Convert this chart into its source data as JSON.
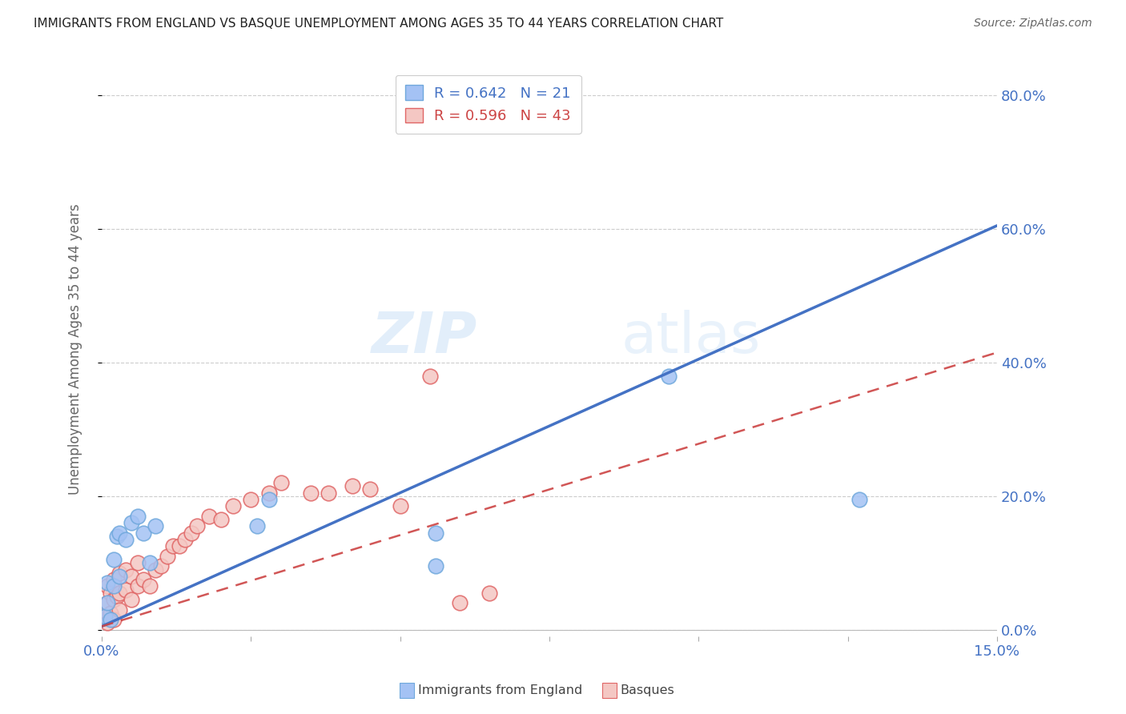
{
  "title": "IMMIGRANTS FROM ENGLAND VS BASQUE UNEMPLOYMENT AMONG AGES 35 TO 44 YEARS CORRELATION CHART",
  "source": "Source: ZipAtlas.com",
  "ylabel": "Unemployment Among Ages 35 to 44 years",
  "ytick_labels": [
    "0.0%",
    "20.0%",
    "40.0%",
    "60.0%",
    "80.0%"
  ],
  "ytick_values": [
    0.0,
    0.2,
    0.4,
    0.6,
    0.8
  ],
  "xrange": [
    0.0,
    0.15
  ],
  "yrange": [
    -0.01,
    0.85
  ],
  "legend_england_R": 0.642,
  "legend_england_N": 21,
  "legend_basque_R": 0.596,
  "legend_basque_N": 43,
  "watermark_zip": "ZIP",
  "watermark_atlas": "atlas",
  "england_scatter_x": [
    0.0005,
    0.001,
    0.001,
    0.0015,
    0.002,
    0.002,
    0.0025,
    0.003,
    0.003,
    0.004,
    0.005,
    0.006,
    0.007,
    0.008,
    0.009,
    0.026,
    0.028,
    0.056,
    0.056,
    0.095,
    0.127
  ],
  "england_scatter_y": [
    0.02,
    0.04,
    0.07,
    0.015,
    0.065,
    0.105,
    0.14,
    0.08,
    0.145,
    0.135,
    0.16,
    0.17,
    0.145,
    0.1,
    0.155,
    0.155,
    0.195,
    0.145,
    0.095,
    0.38,
    0.195
  ],
  "england_line_x": [
    0.0,
    0.15
  ],
  "england_line_y": [
    0.005,
    0.605
  ],
  "basque_scatter_x": [
    0.0005,
    0.001,
    0.001,
    0.001,
    0.0015,
    0.0015,
    0.002,
    0.002,
    0.002,
    0.0025,
    0.003,
    0.003,
    0.003,
    0.004,
    0.004,
    0.005,
    0.005,
    0.006,
    0.006,
    0.007,
    0.008,
    0.009,
    0.01,
    0.011,
    0.012,
    0.013,
    0.014,
    0.015,
    0.016,
    0.018,
    0.02,
    0.022,
    0.025,
    0.028,
    0.03,
    0.035,
    0.038,
    0.042,
    0.045,
    0.05,
    0.055,
    0.06,
    0.065
  ],
  "basque_scatter_y": [
    0.02,
    0.01,
    0.04,
    0.065,
    0.025,
    0.055,
    0.015,
    0.045,
    0.075,
    0.05,
    0.03,
    0.055,
    0.085,
    0.06,
    0.09,
    0.045,
    0.08,
    0.065,
    0.1,
    0.075,
    0.065,
    0.09,
    0.095,
    0.11,
    0.125,
    0.125,
    0.135,
    0.145,
    0.155,
    0.17,
    0.165,
    0.185,
    0.195,
    0.205,
    0.22,
    0.205,
    0.205,
    0.215,
    0.21,
    0.185,
    0.38,
    0.04,
    0.055
  ],
  "basque_line_x": [
    0.0,
    0.15
  ],
  "basque_line_y": [
    0.005,
    0.415
  ],
  "england_color": "#a4c2f4",
  "basque_color": "#f4c7c3",
  "england_scatter_edge": "#6fa8dc",
  "basque_scatter_edge": "#e06666",
  "england_line_color": "#4472c4",
  "basque_line_color": "#cc4444",
  "background_color": "#ffffff",
  "grid_color": "#cccccc",
  "title_color": "#222222",
  "tick_label_color": "#4472c4"
}
